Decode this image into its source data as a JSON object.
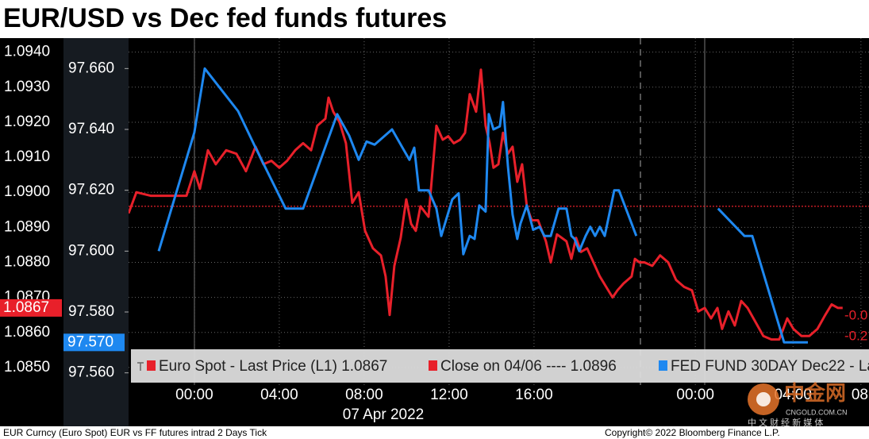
{
  "chart_data": {
    "type": "line",
    "title": "EUR/USD vs Dec fed funds futures",
    "date_label": "07 Apr 2022",
    "xlim": [
      -3.1,
      31.78
    ],
    "xticks": [
      {
        "value": 0,
        "label": "00:00"
      },
      {
        "value": 4,
        "label": "04:00"
      },
      {
        "value": 8,
        "label": "08:00"
      },
      {
        "value": 12,
        "label": "12:00"
      },
      {
        "value": 16,
        "label": "16:00"
      },
      {
        "value": 23.6,
        "label": "00:00"
      },
      {
        "value": 28.2,
        "label": "04:00"
      },
      {
        "value": 31.4,
        "label": "08"
      }
    ],
    "ylim": [
      1.0845,
      1.0944
    ],
    "yticks": [
      {
        "value": 1.094,
        "label": "1.0940"
      },
      {
        "value": 1.093,
        "label": "1.0930"
      },
      {
        "value": 1.092,
        "label": "1.0920"
      },
      {
        "value": 1.091,
        "label": "1.0910"
      },
      {
        "value": 1.09,
        "label": "1.0900"
      },
      {
        "value": 1.089,
        "label": "1.0890"
      },
      {
        "value": 1.088,
        "label": "1.0880"
      },
      {
        "value": 1.087,
        "label": "1.0870"
      },
      {
        "value": 1.086,
        "label": "1.0860"
      },
      {
        "value": 1.085,
        "label": "1.0850"
      }
    ],
    "y2lim": [
      97.556,
      97.67
    ],
    "y2ticks": [
      {
        "value": 97.66,
        "label": "97.660"
      },
      {
        "value": 97.64,
        "label": "97.640"
      },
      {
        "value": 97.62,
        "label": "97.620"
      },
      {
        "value": 97.6,
        "label": "97.600"
      },
      {
        "value": 97.58,
        "label": "97.580"
      },
      {
        "value": 97.56,
        "label": "97.560"
      }
    ],
    "grid": true,
    "series": [
      {
        "name": "Euro Spot - Last Price (L1) 1.0867",
        "color": "#e8202a",
        "last_label": "1.0867",
        "change_label": "-0.0",
        "x": [
          -3.1,
          -2.73,
          -2.06,
          -1.31,
          -0.86,
          -0.37,
          0,
          0.26,
          0.64,
          1.01,
          1.5,
          1.98,
          2.43,
          2.88,
          3.25,
          3.63,
          4.0,
          4.37,
          4.75,
          5.12,
          5.5,
          5.79,
          6.17,
          6.32,
          6.54,
          6.84,
          7.14,
          7.44,
          7.74,
          8.04,
          8.41,
          8.79,
          9.01,
          9.2,
          9.42,
          9.72,
          9.98,
          10.21,
          10.43,
          10.65,
          11.03,
          11.4,
          11.7,
          11.96,
          12.22,
          12.52,
          12.75,
          12.97,
          13.27,
          13.5,
          13.72,
          13.91,
          14.09,
          14.32,
          14.54,
          14.77,
          14.99,
          15.21,
          15.44,
          15.66,
          15.89,
          16.19,
          16.56,
          16.79,
          17.08,
          17.31,
          17.53,
          17.76,
          17.98,
          18.21,
          18.5,
          18.8,
          19.1,
          19.4,
          19.7,
          19.93,
          20.22,
          20.6,
          20.75,
          20.97,
          21.2,
          21.57,
          21.94,
          22.32,
          22.69,
          23.07,
          23.44,
          23.74,
          24.04,
          24.34,
          24.64,
          24.86,
          25.16,
          25.46,
          25.76,
          26.06,
          26.43,
          26.8,
          27.18,
          27.55,
          27.93,
          28.22,
          28.6,
          28.97,
          29.35,
          29.72,
          30.02,
          30.32,
          30.54
        ],
        "values": [
          1.0894,
          1.09,
          1.0899,
          1.0899,
          1.0899,
          1.0899,
          1.0906,
          1.0901,
          1.0912,
          1.0908,
          1.0912,
          1.0911,
          1.0906,
          1.0913,
          1.0908,
          1.0909,
          1.0907,
          1.0909,
          1.0912,
          1.0914,
          1.0912,
          1.0919,
          1.0921,
          1.0927,
          1.0923,
          1.092,
          1.0914,
          1.0897,
          1.09,
          1.0889,
          1.0884,
          1.0882,
          1.0876,
          1.0865,
          1.0879,
          1.0887,
          1.0898,
          1.0891,
          1.0889,
          1.0896,
          1.0893,
          1.0919,
          1.0915,
          1.0916,
          1.0914,
          1.0915,
          1.0917,
          1.0928,
          1.0923,
          1.0935,
          1.0919,
          1.0914,
          1.0907,
          1.0908,
          1.0917,
          1.0911,
          1.0913,
          1.0903,
          1.0908,
          1.0896,
          1.0892,
          1.0892,
          1.0886,
          1.088,
          1.0888,
          1.0887,
          1.0886,
          1.0881,
          1.0887,
          1.0883,
          1.0884,
          1.088,
          1.0876,
          1.0873,
          1.087,
          1.0872,
          1.0874,
          1.0876,
          1.0881,
          1.088,
          1.088,
          1.0879,
          1.0882,
          1.088,
          1.0875,
          1.0873,
          1.0872,
          1.0866,
          1.0867,
          1.0864,
          1.0867,
          1.0861,
          1.0866,
          1.0862,
          1.0869,
          1.0867,
          1.0863,
          1.0859,
          1.0858,
          1.0858,
          1.0864,
          1.0861,
          1.0859,
          1.0859,
          1.0861,
          1.0865,
          1.0868,
          1.0867,
          1.0867
        ]
      },
      {
        "name": "FED FUND 30DAY Dec22 - La",
        "color": "#1e88f0",
        "axis": "y2",
        "last_label": "97.570",
        "change_label": "-0.2",
        "x": [
          -1.68,
          0,
          0.49,
          2.06,
          2.88,
          4.3,
          5.12,
          6.73,
          7.29,
          7.74,
          8.11,
          8.49,
          9.31,
          10.13,
          10.36,
          10.58,
          11.03,
          11.4,
          11.63,
          12.15,
          12.45,
          12.67,
          12.97,
          13.2,
          13.42,
          13.72,
          13.87,
          14.09,
          14.39,
          14.54,
          14.77,
          14.99,
          15.21,
          15.36,
          15.66,
          15.96,
          16.26,
          16.49,
          16.79,
          17.16,
          17.53,
          17.76,
          17.91,
          18.13,
          18.43,
          18.65,
          18.88,
          19.1,
          19.33,
          19.78,
          20.0,
          20.82,
          null,
          24.67,
          25.91,
          26.28,
          27.78,
          28.9
        ],
        "values": [
          97.6,
          97.639,
          97.66,
          97.646,
          97.634,
          97.614,
          97.614,
          97.645,
          97.638,
          97.63,
          97.636,
          97.635,
          97.64,
          97.63,
          97.634,
          97.62,
          97.62,
          97.614,
          97.605,
          97.617,
          97.619,
          97.599,
          97.605,
          97.604,
          97.615,
          97.613,
          97.645,
          97.64,
          97.641,
          97.649,
          97.628,
          97.612,
          97.604,
          97.609,
          97.615,
          97.607,
          97.608,
          97.605,
          97.605,
          97.614,
          97.614,
          97.605,
          97.604,
          97.6,
          97.605,
          97.608,
          97.605,
          97.608,
          97.605,
          97.62,
          97.62,
          97.605,
          null,
          97.614,
          97.605,
          97.605,
          97.57,
          97.57
        ]
      }
    ],
    "reference_lines": [
      {
        "name": "Close on 04/06 ---- 1.0896",
        "value": 1.0896,
        "color": "#e8202a"
      }
    ],
    "footer_left": "EUR Curncy (Euro Spot) EUR vs FF futures intrad 2 Days  Tick",
    "footer_right": "Copyright© 2022 Bloomberg Finance L.P.",
    "watermark": {
      "title": "中金网",
      "url": "CNGOLD.COM.CN",
      "tagline": "中 文 财 经 新 媒 体"
    }
  }
}
